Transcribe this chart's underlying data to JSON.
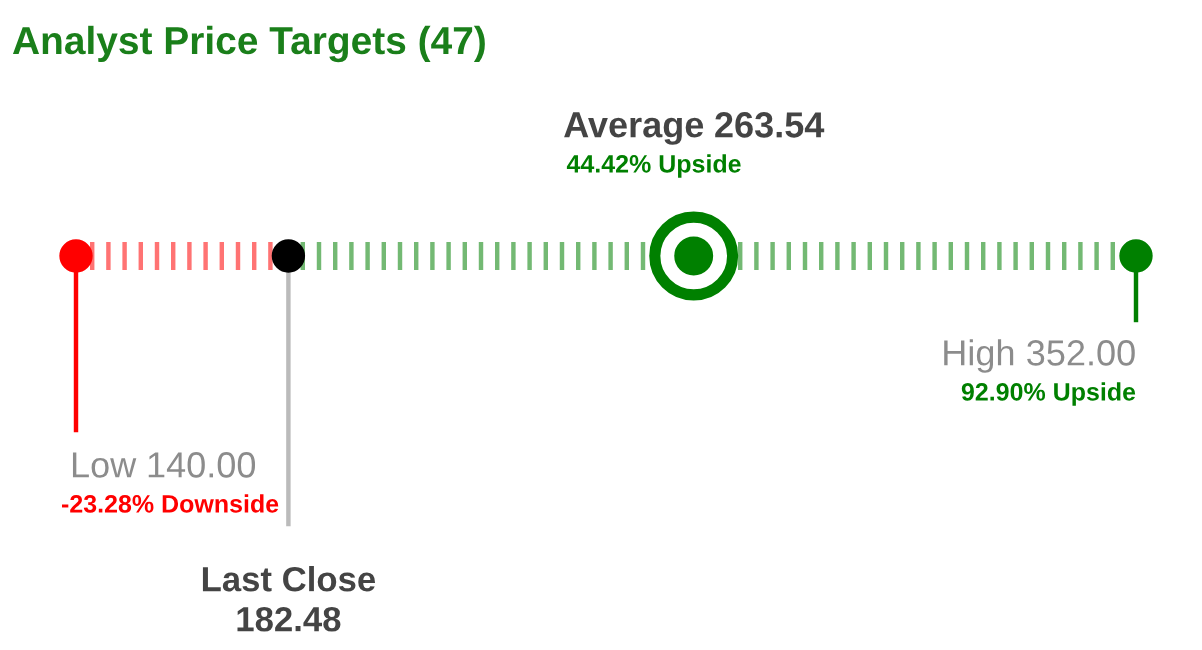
{
  "chart_data": {
    "type": "other",
    "title": "Analyst Price Targets (47)",
    "categories": [
      "Low",
      "Last Close",
      "Average",
      "High"
    ],
    "values": [
      140,
      182.48,
      263.54,
      352
    ],
    "value_labels": [
      "140.00",
      "182.48",
      "263.54",
      "352.00"
    ],
    "colors": [
      "#ff0000",
      "#000000",
      "#008000",
      "#008000"
    ],
    "annotations": [
      "-23.28% Downside",
      "44.42% Upside",
      "92.90% Upside"
    ]
  }
}
